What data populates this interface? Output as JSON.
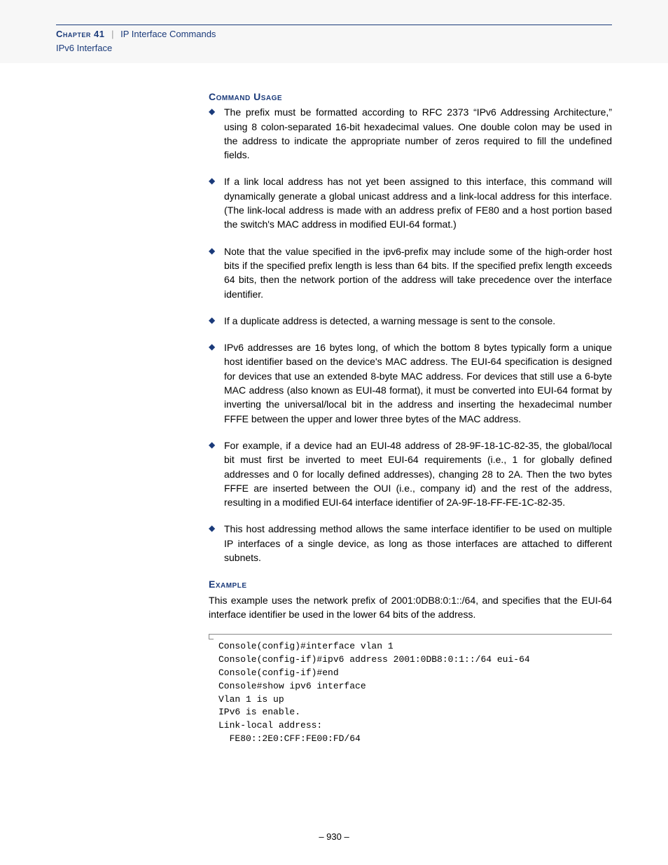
{
  "header": {
    "chapter_label": "Chapter 41",
    "separator": "|",
    "chapter_title": "IP Interface Commands",
    "subsection": "IPv6 Interface"
  },
  "sections": {
    "usage_head": "Command Usage",
    "example_head": "Example"
  },
  "bullets": [
    "The prefix must be formatted according to RFC 2373 “IPv6 Addressing Architecture,” using 8 colon-separated 16-bit hexadecimal values. One double colon may be used in the address to indicate the appropriate number of zeros required to fill the undefined fields.",
    "If a link local address has not yet been assigned to this interface, this command will dynamically generate a global unicast address and a link-local address for this interface. (The link-local address is made with an address prefix of FE80 and a host portion based the switch's MAC address in modified EUI-64 format.)",
    "Note that the value specified in the ipv6-prefix may include some of the high-order host bits if the specified prefix length is less than 64 bits. If the specified prefix length exceeds 64 bits, then the network portion of the address will take precedence over the interface identifier.",
    "If a duplicate address is detected, a warning message is sent to the console.",
    "IPv6 addresses are 16 bytes long, of which the bottom 8 bytes typically form a unique host identifier based on the device's MAC address. The EUI-64 specification is designed for devices that use an extended 8-byte MAC address. For devices that still use a 6-byte MAC address (also known as EUI-48 format), it must be converted into EUI-64 format by inverting the universal/local bit in the address and inserting the hexadecimal number FFFE between the upper and lower three bytes of the MAC address.",
    "For example, if a device had an EUI-48 address of 28-9F-18-1C-82-35, the global/local bit must first be inverted to meet EUI-64 requirements (i.e., 1 for globally defined addresses and 0 for locally defined addresses), changing 28 to 2A. Then the two bytes FFFE are inserted between the OUI (i.e., company id) and the rest of the address, resulting in a modified EUI-64 interface identifier of 2A-9F-18-FF-FE-1C-82-35.",
    "This host addressing method allows the same interface identifier to be used on multiple IP interfaces of a single device, as long as those interfaces are attached to different subnets."
  ],
  "example_para": "This example uses the network prefix of 2001:0DB8:0:1::/64, and specifies that the EUI-64 interface identifier be used in the lower 64 bits of the address.",
  "code": "Console(config)#interface vlan 1\nConsole(config-if)#ipv6 address 2001:0DB8:0:1::/64 eui-64\nConsole(config-if)#end\nConsole#show ipv6 interface\nVlan 1 is up\nIPv6 is enable.\nLink-local address:\n  FE80::2E0:CFF:FE00:FD/64",
  "page_number": "– 930 –"
}
